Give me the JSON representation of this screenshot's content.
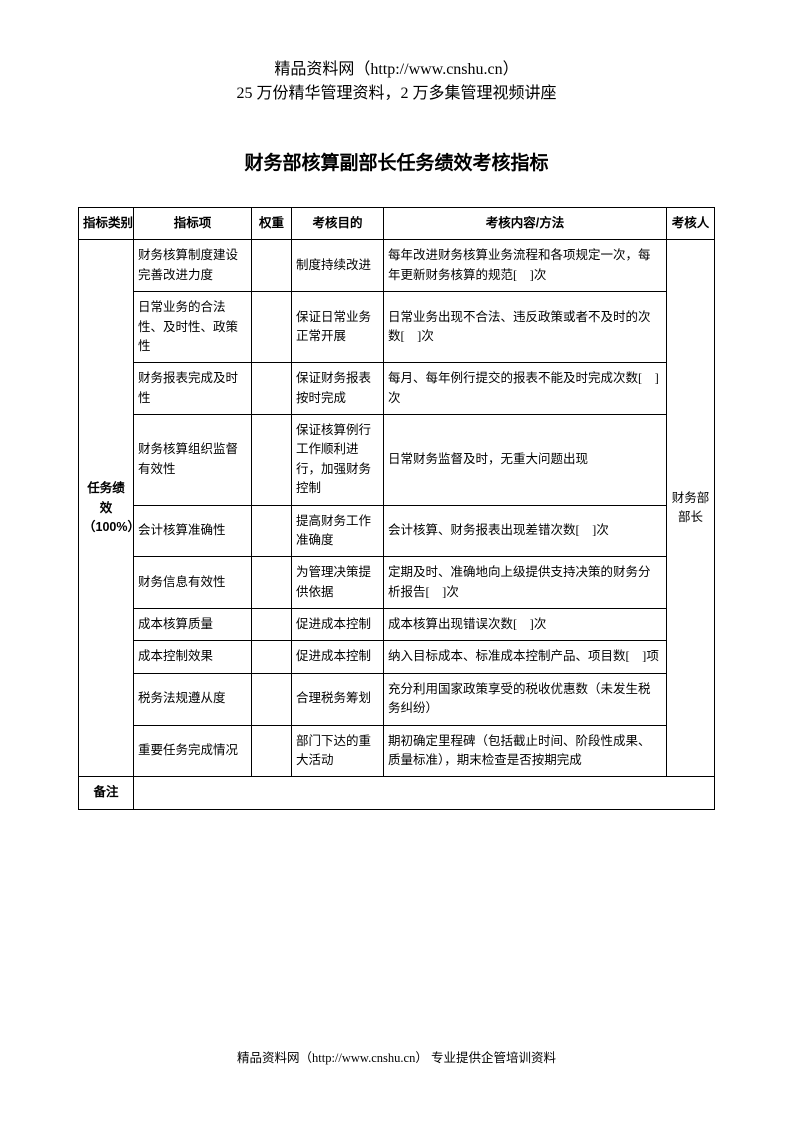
{
  "header": {
    "line1": "精品资料网（http://www.cnshu.cn）",
    "line2": "25 万份精华管理资料，2 万多集管理视频讲座"
  },
  "title": "财务部核算副部长任务绩效考核指标",
  "table": {
    "columns": [
      "指标类别",
      "指标项",
      "权重",
      "考核目的",
      "考核内容/方法",
      "考核人"
    ],
    "category_label": "任务绩效（100%）",
    "assessor": "财务部部长",
    "remark_label": "备注",
    "rows": [
      {
        "item": "财务核算制度建设完善改进力度",
        "weight": "",
        "purpose": "制度持续改进",
        "content": "每年改进财务核算业务流程和各项规定一次，每年更新财务核算的规范[　]次"
      },
      {
        "item": "日常业务的合法性、及时性、政策性",
        "weight": "",
        "purpose": "保证日常业务正常开展",
        "content": "日常业务出现不合法、违反政策或者不及时的次数[　]次"
      },
      {
        "item": "财务报表完成及时性",
        "weight": "",
        "purpose": "保证财务报表按时完成",
        "content": "每月、每年例行提交的报表不能及时完成次数[　]次"
      },
      {
        "item": "财务核算组织监督有效性",
        "weight": "",
        "purpose": "保证核算例行工作顺利进行，加强财务控制",
        "content": "日常财务监督及时，无重大问题出现"
      },
      {
        "item": "会计核算准确性",
        "weight": "",
        "purpose": "提高财务工作准确度",
        "content": "会计核算、财务报表出现差错次数[　]次"
      },
      {
        "item": "财务信息有效性",
        "weight": "",
        "purpose": "为管理决策提供依据",
        "content": "定期及时、准确地向上级提供支持决策的财务分析报告[　]次"
      },
      {
        "item": "成本核算质量",
        "weight": "",
        "purpose": "促进成本控制",
        "content": "成本核算出现错误次数[　]次"
      },
      {
        "item": "成本控制效果",
        "weight": "",
        "purpose": "促进成本控制",
        "content": "纳入目标成本、标准成本控制产品、项目数[　]项"
      },
      {
        "item": "税务法规遵从度",
        "weight": "",
        "purpose": "合理税务筹划",
        "content": "充分利用国家政策享受的税收优惠数（未发生税务纠纷）"
      },
      {
        "item": "重要任务完成情况",
        "weight": "",
        "purpose": "部门下达的重大活动",
        "content": "期初确定里程碑（包括截止时间、阶段性成果、质量标准），期末检查是否按期完成"
      }
    ]
  },
  "footer": "精品资料网（http://www.cnshu.cn）  专业提供企管培训资料"
}
